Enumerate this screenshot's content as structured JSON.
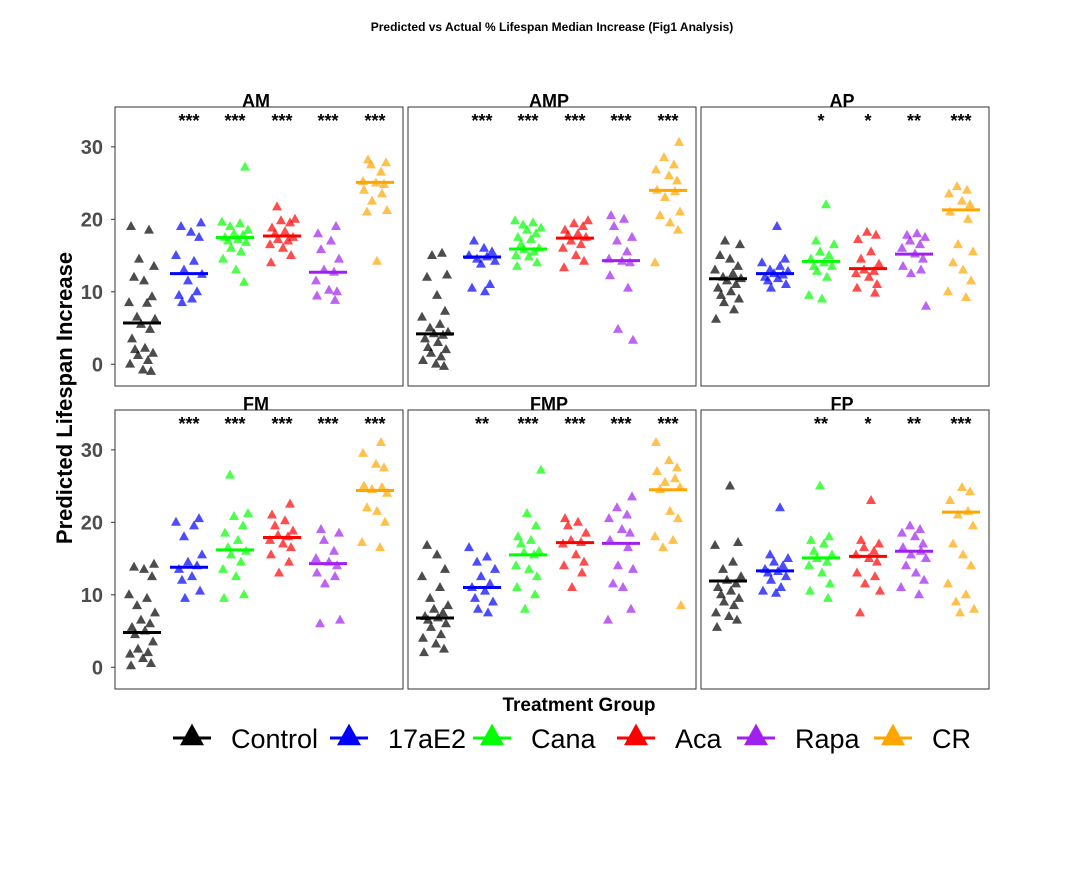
{
  "chart_data": {
    "type": "scatter",
    "title": "Predicted vs Actual % Lifespan Median Increase (Fig1 Analysis)",
    "xlabel": "Treatment Group",
    "ylabel": "Predicted Lifespan Increase",
    "ylim": [
      -3,
      35.5
    ],
    "yticks": [
      0,
      10,
      20,
      30
    ],
    "grid": false,
    "legend_position": "bottom",
    "groups": [
      "Control",
      "17aE2",
      "Cana",
      "Aca",
      "Rapa",
      "CR"
    ],
    "colors": {
      "Control": "#000000",
      "17aE2": "#0000ff",
      "Cana": "#00ff00",
      "Aca": "#ff0000",
      "Rapa": "#a020f0",
      "CR": "#ffa500"
    },
    "legend": [
      {
        "label": "Control",
        "color": "#000000"
      },
      {
        "label": "17aE2",
        "color": "#0000ff"
      },
      {
        "label": "Cana",
        "color": "#00ff00"
      },
      {
        "label": "Aca",
        "color": "#ff0000"
      },
      {
        "label": "Rapa",
        "color": "#a020f0"
      },
      {
        "label": "CR",
        "color": "#ffa500"
      }
    ],
    "panels": [
      {
        "name": "AM",
        "significance": [
          "",
          "***",
          "***",
          "***",
          "***",
          "***"
        ],
        "medians": [
          5.7,
          12.5,
          17.5,
          17.7,
          12.7,
          25.1
        ],
        "points": [
          [
            19,
            18.5,
            14.5,
            13.5,
            12,
            11.5,
            9.3,
            8.5,
            8.4,
            6.5,
            6.2,
            5.5,
            4.8,
            3.5,
            2.2,
            2,
            1.5,
            1.2,
            0.5,
            0,
            -0.8,
            -1
          ],
          [
            19.5,
            19,
            18.2,
            17.5,
            15,
            14.2,
            13,
            12.4,
            11.5,
            10,
            9.5,
            9,
            8.5
          ],
          [
            27.2,
            19.6,
            19.4,
            19,
            18.5,
            18,
            17.8,
            17.5,
            17.2,
            17,
            16.8,
            16,
            15.5,
            14.5,
            13,
            11.3
          ],
          [
            21.7,
            20,
            19.8,
            19.5,
            18.8,
            18.3,
            18,
            17.5,
            17.2,
            17,
            16.5,
            16,
            15,
            14
          ],
          [
            19,
            18,
            17,
            15.8,
            14.5,
            13,
            12.7,
            11.5,
            10.2,
            10,
            9.4,
            8.8
          ],
          [
            28.2,
            27.8,
            27.5,
            26.5,
            25.2,
            25,
            24.8,
            24,
            23.5,
            22.5,
            21.2,
            21,
            14.2
          ]
        ]
      },
      {
        "name": "AMP",
        "significance": [
          "",
          "***",
          "***",
          "***",
          "***",
          "***"
        ],
        "medians": [
          4.2,
          14.8,
          15.9,
          17.4,
          14.3,
          24
        ],
        "points": [
          [
            15.3,
            15,
            12.3,
            12,
            9.5,
            7.3,
            6.5,
            5.5,
            5,
            4.4,
            4.2,
            4,
            3.5,
            3,
            2.3,
            2,
            1.5,
            1,
            0.5,
            0,
            -0.3
          ],
          [
            17,
            16,
            15.5,
            15,
            14.8,
            14.5,
            14.2,
            13.8,
            11,
            10.5,
            10
          ],
          [
            19.8,
            19.5,
            19.2,
            18.8,
            18.5,
            18,
            17.5,
            17.2,
            16.5,
            16,
            15.8,
            15.5,
            15,
            14.8,
            14,
            13.5
          ],
          [
            19.8,
            19.4,
            19,
            18.5,
            18,
            17.8,
            17.5,
            17,
            16.5,
            16,
            15,
            14.2,
            13.3
          ],
          [
            20.5,
            20,
            19,
            17.5,
            17,
            15.5,
            14.5,
            14.2,
            14,
            12.2,
            10.5,
            4.8,
            3.3
          ],
          [
            30.6,
            28.5,
            27.5,
            26.8,
            26,
            25.3,
            24,
            23.8,
            23,
            21,
            20.5,
            19.5,
            18.5,
            14
          ]
        ]
      },
      {
        "name": "AP",
        "significance": [
          "",
          "",
          "*",
          "*",
          "**",
          "***"
        ],
        "medians": [
          11.8,
          12.5,
          14.2,
          13.2,
          15.2,
          21.3
        ],
        "points": [
          [
            17,
            16.5,
            15,
            14.5,
            13.5,
            13,
            12.5,
            12,
            11.8,
            11.5,
            11,
            10.5,
            10,
            9.5,
            9,
            8.5,
            7.5,
            6.2
          ],
          [
            19,
            14.5,
            14,
            13.5,
            13,
            12.8,
            12.5,
            12.3,
            12,
            11.8,
            11.5,
            11,
            10.5
          ],
          [
            22,
            17,
            16.5,
            15.5,
            15,
            14.5,
            14,
            13.5,
            13.5,
            12.8,
            12,
            9.5,
            9
          ],
          [
            18.2,
            17.8,
            17.2,
            15.5,
            14.5,
            13.8,
            13,
            12.8,
            12.5,
            12,
            11,
            10.5,
            9.8
          ],
          [
            18,
            17.8,
            17.5,
            17,
            16.5,
            16,
            15.2,
            14.5,
            13.5,
            13,
            12.5,
            8
          ],
          [
            24.5,
            24,
            23.5,
            22.5,
            22,
            21,
            20,
            16.5,
            15.5,
            14,
            13,
            11.5,
            10,
            9.2
          ]
        ]
      },
      {
        "name": "FM",
        "significance": [
          "",
          "***",
          "***",
          "***",
          "***",
          "***"
        ],
        "medians": [
          4.8,
          13.8,
          16.2,
          17.9,
          14.3,
          24.4
        ],
        "points": [
          [
            14.2,
            13.8,
            13.5,
            12.5,
            10,
            9.5,
            8.5,
            7.5,
            6.5,
            6,
            5.5,
            5,
            4.5,
            3.5,
            2.5,
            2,
            1.8,
            1.2,
            0.5,
            0.2
          ],
          [
            20.5,
            20,
            19.5,
            18,
            15.5,
            14.5,
            14,
            13.5,
            12.5,
            12,
            10.5,
            9.5
          ],
          [
            26.5,
            21.2,
            20.8,
            19.5,
            18.5,
            17.5,
            16.5,
            16,
            15.5,
            14.5,
            13.5,
            12.5,
            10,
            9.5
          ],
          [
            22.5,
            21,
            20.2,
            19.5,
            18.8,
            18.2,
            18,
            17.5,
            17,
            16.5,
            15.5,
            14.5,
            13
          ],
          [
            19,
            18.5,
            17.5,
            16,
            15,
            14.5,
            14,
            13,
            12.5,
            11.5,
            6.5,
            6
          ],
          [
            31,
            29.5,
            28,
            27.5,
            25,
            24.8,
            24.5,
            24,
            22,
            21.5,
            20,
            17.2,
            16.5
          ]
        ]
      },
      {
        "name": "FMP",
        "significance": [
          "",
          "**",
          "***",
          "***",
          "***",
          "***"
        ],
        "medians": [
          6.8,
          11,
          15.5,
          17.2,
          17.1,
          24.5
        ],
        "points": [
          [
            16.8,
            15.5,
            13.5,
            12.5,
            11,
            9.5,
            8.5,
            8,
            7.5,
            7,
            6.8,
            6.5,
            6,
            5.5,
            4.5,
            4,
            3.2,
            2.5,
            2
          ],
          [
            16.5,
            15.2,
            14.5,
            13.5,
            12.5,
            11.5,
            11,
            10.5,
            9.5,
            9,
            8,
            7.5
          ],
          [
            27.2,
            21.2,
            19.5,
            18,
            17.5,
            17,
            16,
            15.8,
            15.5,
            14,
            13.5,
            12.5,
            11,
            10,
            8
          ],
          [
            20.5,
            20,
            19.5,
            18.5,
            17.5,
            17.2,
            17,
            15.5,
            14.5,
            14,
            13,
            11
          ],
          [
            23.5,
            22,
            21,
            20.5,
            19,
            18.5,
            17.5,
            16.5,
            14,
            13.5,
            11.5,
            11,
            8,
            6.5
          ],
          [
            31,
            28.5,
            27.5,
            27,
            26,
            25.5,
            24.8,
            24.5,
            21.5,
            20.5,
            18,
            17.5,
            16.5,
            8.5
          ]
        ]
      },
      {
        "name": "FP",
        "significance": [
          "",
          "",
          "**",
          "*",
          "**",
          "***"
        ],
        "medians": [
          11.9,
          13.3,
          15.1,
          15.3,
          16,
          21.4
        ],
        "points": [
          [
            25,
            17.2,
            16.8,
            14.5,
            13.5,
            12.5,
            12,
            11.5,
            11,
            10.5,
            10,
            9.5,
            9,
            8.5,
            7.5,
            7,
            6.5,
            5.5
          ],
          [
            22,
            15.5,
            15,
            14.5,
            14,
            13.5,
            13.2,
            13,
            12.5,
            12,
            11,
            10.5,
            10.2
          ],
          [
            25,
            18,
            17.5,
            17,
            16,
            15.5,
            15,
            14.5,
            14,
            13,
            11.5,
            10.5,
            9.5
          ],
          [
            23,
            17.5,
            17,
            16.5,
            16,
            15.5,
            15,
            14.5,
            13,
            12.5,
            11.5,
            10.5,
            7.5
          ],
          [
            19.5,
            19,
            18.5,
            18,
            17,
            16.5,
            16,
            15.5,
            15,
            14,
            13,
            12,
            11,
            10
          ],
          [
            24.8,
            24.2,
            23,
            21.5,
            21,
            19.5,
            17,
            15.5,
            14,
            11.5,
            10,
            9,
            8,
            7.5
          ]
        ]
      }
    ]
  }
}
